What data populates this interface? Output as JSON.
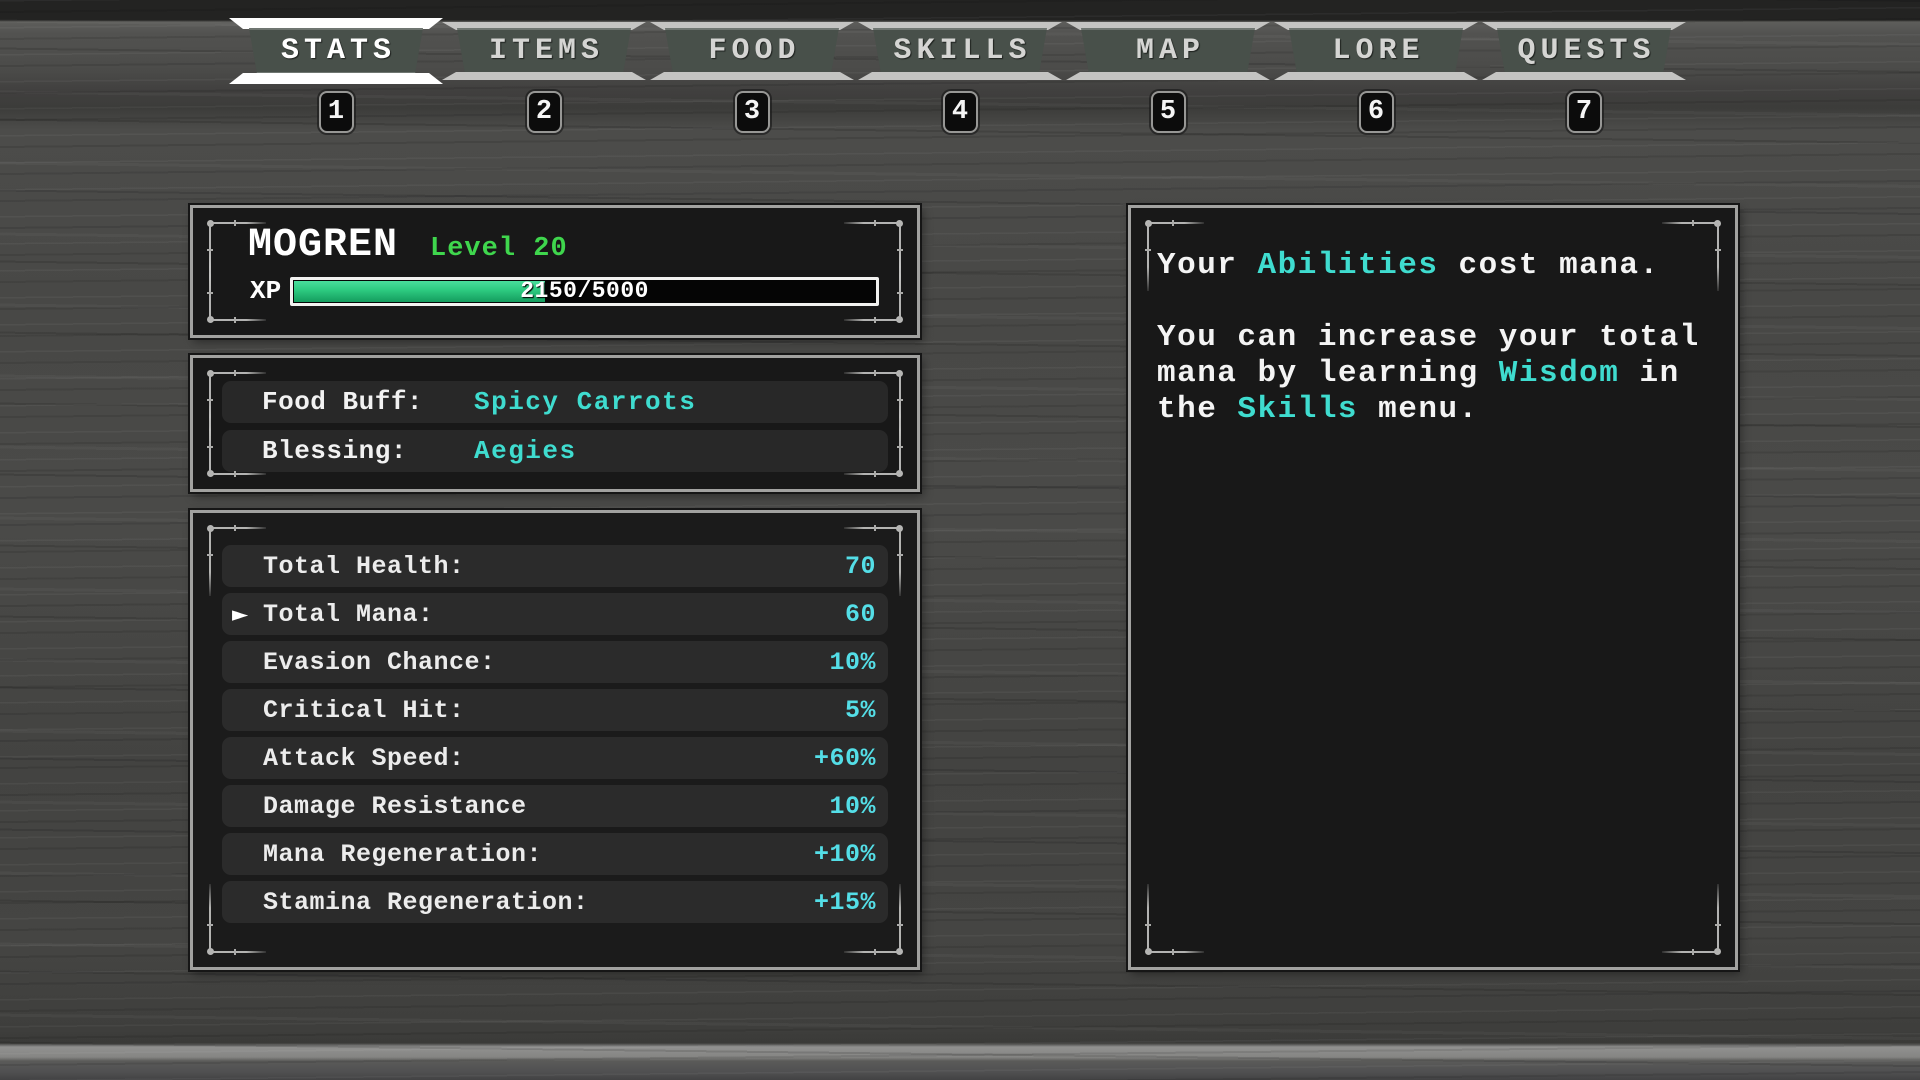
{
  "colors": {
    "highlight_cyan": "#3FDCCF",
    "value_cyan": "#54DEE7",
    "level_green": "#3FD64D",
    "xp_green_top": "#49DD9B",
    "xp_green_bottom": "#149C5E"
  },
  "ui": {
    "selection_arrow": "►"
  },
  "tabs": [
    {
      "label": "STATS",
      "key": "1",
      "active": true
    },
    {
      "label": "ITEMS",
      "key": "2",
      "active": false
    },
    {
      "label": "FOOD",
      "key": "3",
      "active": false
    },
    {
      "label": "SKILLS",
      "key": "4",
      "active": false
    },
    {
      "label": "MAP",
      "key": "5",
      "active": false
    },
    {
      "label": "LORE",
      "key": "6",
      "active": false
    },
    {
      "label": "QUESTS",
      "key": "7",
      "active": false
    }
  ],
  "player": {
    "name": "MOGREN",
    "level": "Level 20",
    "xp_label": "XP",
    "xp_text": "2150/5000",
    "xp_percent": 43
  },
  "buffs": [
    {
      "label": "Food Buff:",
      "value": "Spicy Carrots"
    },
    {
      "label": "Blessing:",
      "value": "Aegies"
    }
  ],
  "stats": [
    {
      "label": "Total Health:",
      "value": "70",
      "selected": false
    },
    {
      "label": "Total Mana:",
      "value": "60",
      "selected": true
    },
    {
      "label": "Evasion Chance:",
      "value": "10%",
      "selected": false
    },
    {
      "label": "Critical Hit:",
      "value": "5%",
      "selected": false
    },
    {
      "label": "Attack Speed:",
      "value": "+60%",
      "selected": false
    },
    {
      "label": "Damage Resistance",
      "value": "10%",
      "selected": false
    },
    {
      "label": "Mana Regeneration:",
      "value": "+10%",
      "selected": false
    },
    {
      "label": "Stamina Regeneration:",
      "value": "+15%",
      "selected": false
    }
  ],
  "info_lines": [
    [
      {
        "t": "Your ",
        "hl": false
      },
      {
        "t": "Abilities",
        "hl": true
      },
      {
        "t": " cost mana.",
        "hl": false
      }
    ],
    [],
    [
      {
        "t": "You can increase your total",
        "hl": false
      }
    ],
    [
      {
        "t": "mana by learning ",
        "hl": false
      },
      {
        "t": "Wisdom",
        "hl": true
      },
      {
        "t": " in",
        "hl": false
      }
    ],
    [
      {
        "t": "the ",
        "hl": false
      },
      {
        "t": "Skills",
        "hl": true
      },
      {
        "t": " menu.",
        "hl": false
      }
    ]
  ]
}
